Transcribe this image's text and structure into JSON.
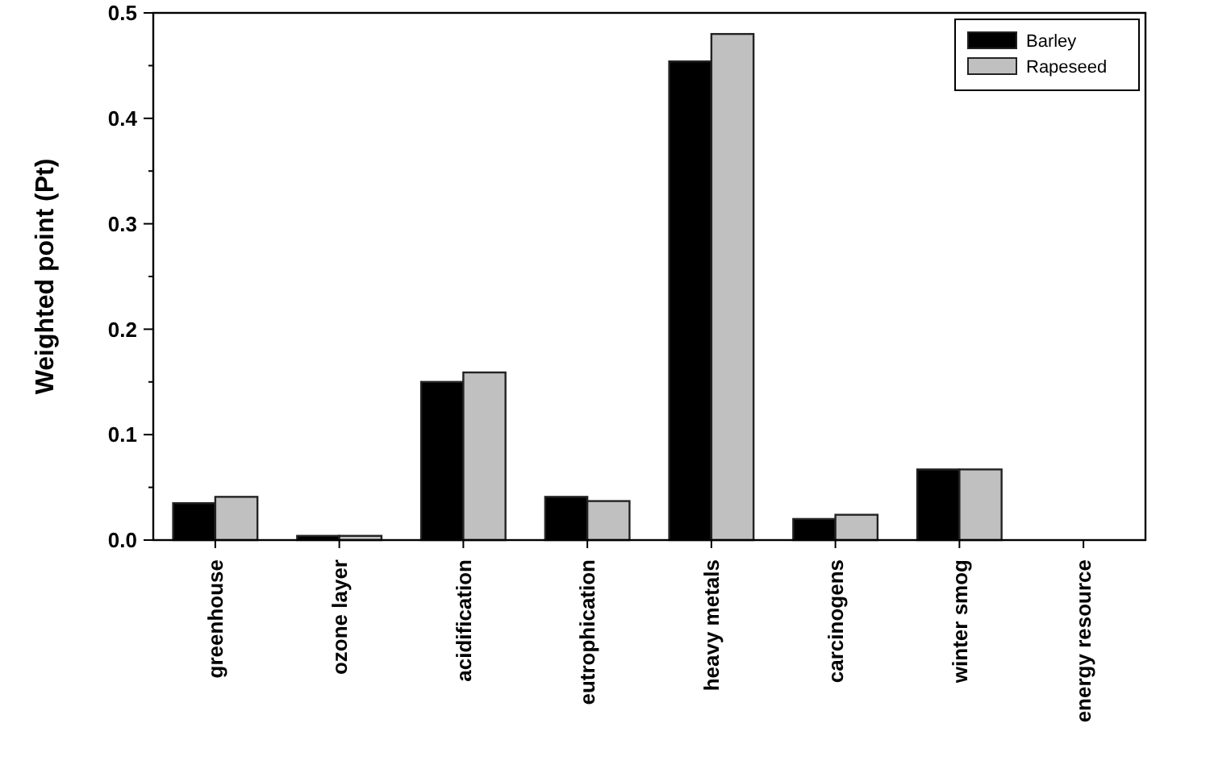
{
  "chart_data": {
    "type": "bar",
    "ylabel": "Weighted point (Pt)",
    "categories": [
      "greenhouse",
      "ozone layer",
      "acidification",
      "eutrophication",
      "heavy metals",
      "carcinogens",
      "winter smog",
      "energy resource"
    ],
    "series": [
      {
        "name": "Barley",
        "color": "#000000",
        "values": [
          0.035,
          0.004,
          0.15,
          0.041,
          0.454,
          0.02,
          0.067,
          0
        ]
      },
      {
        "name": "Rapeseed",
        "color": "#c0c0c0",
        "values": [
          0.041,
          0.004,
          0.159,
          0.037,
          0.48,
          0.024,
          0.067,
          0
        ]
      }
    ],
    "ylim": [
      0,
      0.5
    ],
    "yticks": [
      {
        "value": 0,
        "label": "0.0"
      },
      {
        "value": 0.1,
        "label": "0.1"
      },
      {
        "value": 0.2,
        "label": "0.2"
      },
      {
        "value": 0.3,
        "label": "0.3"
      },
      {
        "value": 0.4,
        "label": "0.4"
      },
      {
        "value": 0.5,
        "label": "0.5"
      }
    ],
    "grid": false,
    "legend": "top right"
  }
}
